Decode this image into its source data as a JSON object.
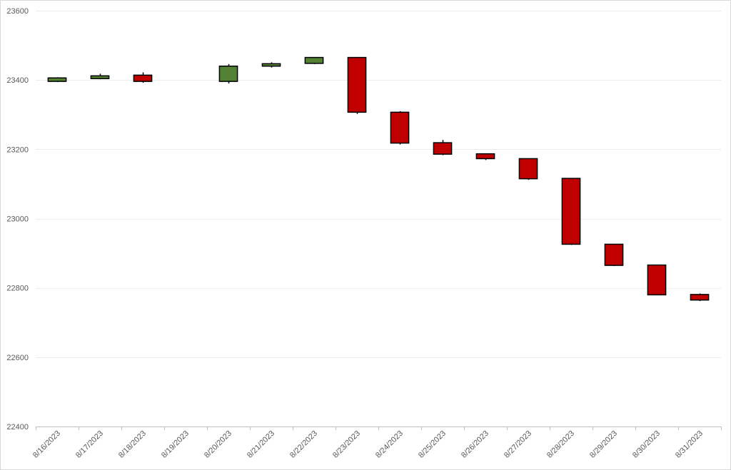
{
  "chart_data": {
    "type": "candlestick",
    "title": "",
    "xlabel": "",
    "ylabel": "",
    "ylim": [
      22400,
      23600
    ],
    "y_ticks": [
      22400,
      22600,
      22800,
      23000,
      23200,
      23400,
      23600
    ],
    "grid": true,
    "legend": "none",
    "colors": {
      "up": "#548235",
      "down": "#c00000",
      "outline": "#000000",
      "grid": "#ececec"
    },
    "categories": [
      "8/16/2023",
      "8/17/2023",
      "8/18/2023",
      "8/19/2023",
      "8/20/2023",
      "8/21/2023",
      "8/22/2023",
      "8/23/2023",
      "8/24/2023",
      "8/25/2023",
      "8/26/2023",
      "8/27/2023",
      "8/28/2023",
      "8/29/2023",
      "8/30/2023",
      "8/31/2023"
    ],
    "candles": [
      {
        "date": "8/16/2023",
        "open": 23396,
        "high": 23408,
        "low": 23394,
        "close": 23406
      },
      {
        "date": "8/17/2023",
        "open": 23404,
        "high": 23418,
        "low": 23402,
        "close": 23412
      },
      {
        "date": "8/18/2023",
        "open": 23414,
        "high": 23422,
        "low": 23392,
        "close": 23396
      },
      {
        "date": "8/19/2023",
        "open": null,
        "high": null,
        "low": null,
        "close": null
      },
      {
        "date": "8/20/2023",
        "open": 23396,
        "high": 23446,
        "low": 23390,
        "close": 23440
      },
      {
        "date": "8/21/2023",
        "open": 23440,
        "high": 23451,
        "low": 23436,
        "close": 23447
      },
      {
        "date": "8/22/2023",
        "open": 23448,
        "high": 23465,
        "low": 23446,
        "close": 23465
      },
      {
        "date": "8/23/2023",
        "open": 23465,
        "high": 23465,
        "low": 23302,
        "close": 23307
      },
      {
        "date": "8/24/2023",
        "open": 23307,
        "high": 23310,
        "low": 23214,
        "close": 23218
      },
      {
        "date": "8/25/2023",
        "open": 23219,
        "high": 23227,
        "low": 23183,
        "close": 23186
      },
      {
        "date": "8/26/2023",
        "open": 23187,
        "high": 23187,
        "low": 23169,
        "close": 23173
      },
      {
        "date": "8/27/2023",
        "open": 23173,
        "high": 23173,
        "low": 23112,
        "close": 23115
      },
      {
        "date": "8/28/2023",
        "open": 23116,
        "high": 23116,
        "low": 22924,
        "close": 22926
      },
      {
        "date": "8/29/2023",
        "open": 22926,
        "high": 22926,
        "low": 22863,
        "close": 22865
      },
      {
        "date": "8/30/2023",
        "open": 22866,
        "high": 22866,
        "low": 22780,
        "close": 22780
      },
      {
        "date": "8/31/2023",
        "open": 22781,
        "high": 22784,
        "low": 22762,
        "close": 22765
      }
    ]
  }
}
